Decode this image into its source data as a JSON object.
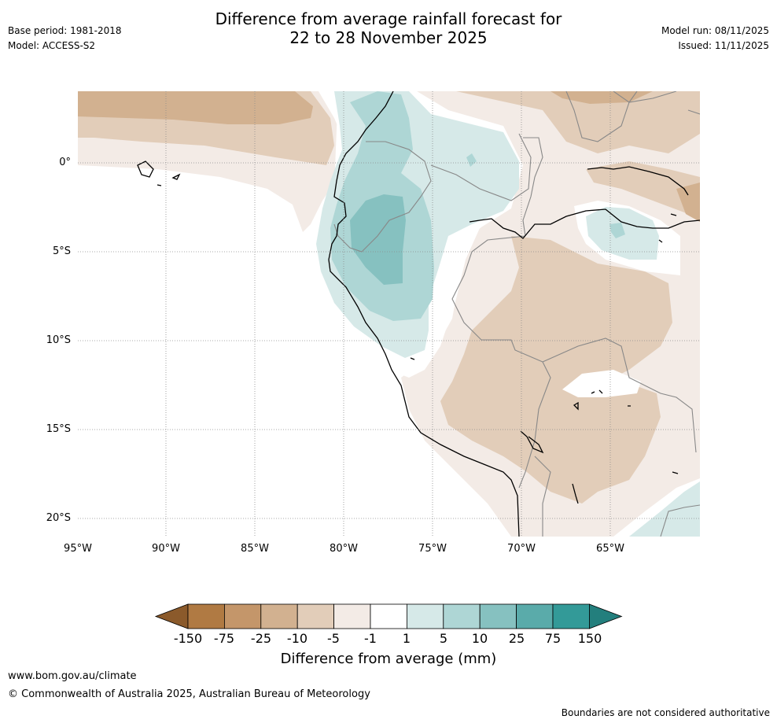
{
  "header": {
    "base_period": "Base period: 1981-2018",
    "model": "Model: ACCESS-S2",
    "title_line1": "Difference from average rainfall forecast for",
    "title_line2": "22 to 28 November 2025",
    "model_run": "Model run: 08/11/2025",
    "issued": "Issued: 11/11/2025"
  },
  "map": {
    "lat_labels": [
      "0°",
      "5°S",
      "10°S",
      "15°S",
      "20°S"
    ],
    "lon_labels": [
      "95°W",
      "90°W",
      "85°W",
      "80°W",
      "75°W",
      "70°W",
      "65°W"
    ]
  },
  "colorbar": {
    "title": "Difference from average (mm)",
    "labels": [
      "-150",
      "-75",
      "-25",
      "-10",
      "-5",
      "-1",
      "1",
      "5",
      "10",
      "25",
      "75",
      "150"
    ],
    "colors": [
      "#8b5a2b",
      "#b07a43",
      "#c4966a",
      "#d2b190",
      "#e2cdb9",
      "#f3ebe6",
      "#ffffff",
      "#d6e9e8",
      "#aed6d5",
      "#86c1c0",
      "#5aabaa",
      "#339a98",
      "#237f7d"
    ]
  },
  "footer": {
    "website": "www.bom.gov.au/climate",
    "copyright": "© Commonwealth of Australia 2025, Australian Bureau of Meteorology",
    "disclaimer": "Boundaries are not considered authoritative"
  }
}
